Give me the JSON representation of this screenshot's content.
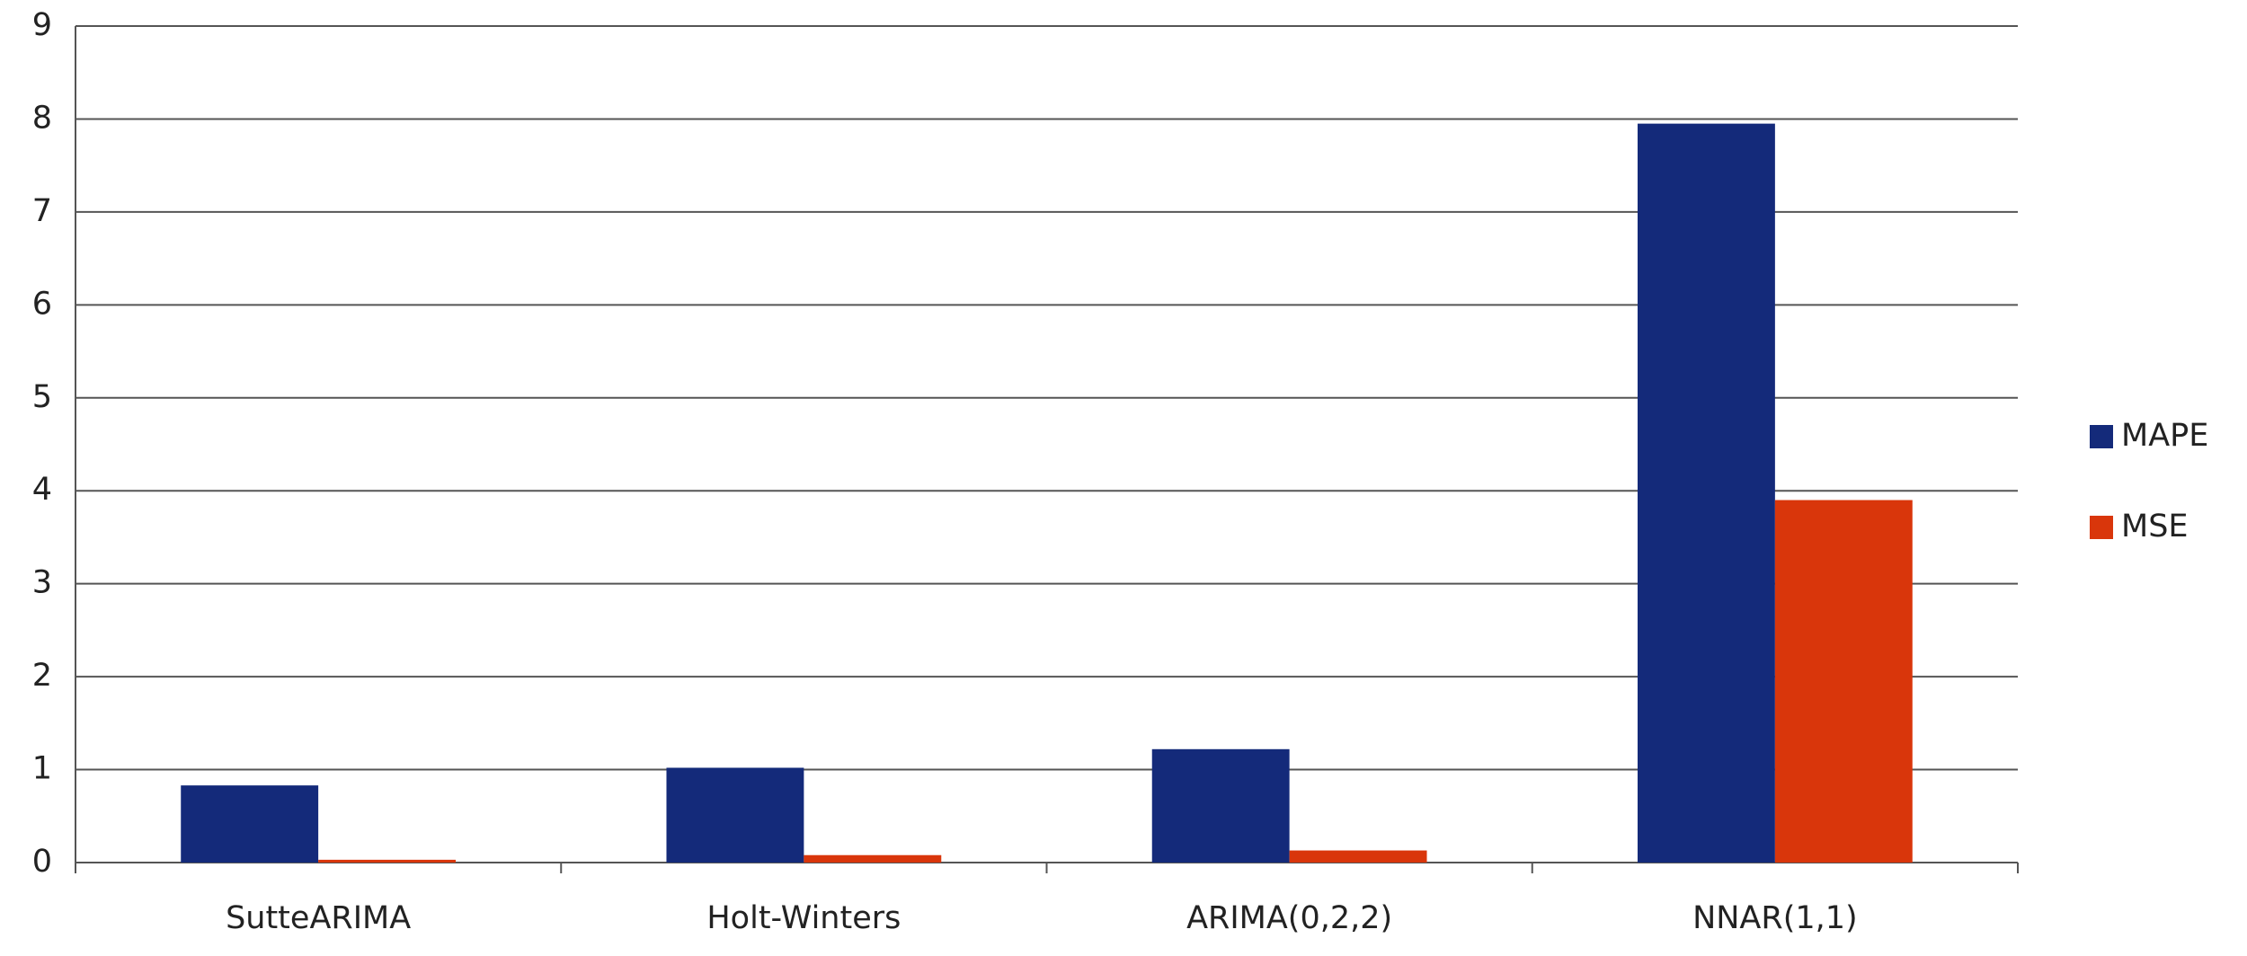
{
  "chart_data": {
    "type": "bar",
    "categories": [
      "SutteARIMA",
      "Holt-Winters",
      "ARIMA(0,2,2)",
      "NNAR(1,1)"
    ],
    "series": [
      {
        "name": "MAPE",
        "color": "#142a7a",
        "values": [
          0.83,
          1.02,
          1.22,
          7.95
        ]
      },
      {
        "name": "MSE",
        "color": "#d9360b",
        "values": [
          0.03,
          0.08,
          0.13,
          3.9
        ]
      }
    ],
    "ylim": [
      0,
      9
    ],
    "yticks": [
      0,
      1,
      2,
      3,
      4,
      5,
      6,
      7,
      8,
      9
    ],
    "grid": true,
    "legend": "right"
  }
}
